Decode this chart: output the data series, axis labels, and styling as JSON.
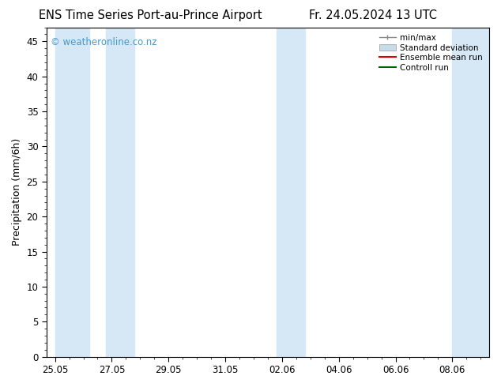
{
  "title_left": "ENS Time Series Port-au-Prince Airport",
  "title_right": "Fr. 24.05.2024 13 UTC",
  "ylabel": "Precipitation (mm/6h)",
  "watermark": "© weatheronline.co.nz",
  "ylim": [
    0,
    47
  ],
  "yticks": [
    0,
    5,
    10,
    15,
    20,
    25,
    30,
    35,
    40,
    45
  ],
  "xtick_labels": [
    "25.05",
    "27.05",
    "29.05",
    "31.05",
    "02.06",
    "04.06",
    "06.06",
    "08.06"
  ],
  "xtick_positions": [
    0,
    2,
    4,
    6,
    8,
    10,
    12,
    14
  ],
  "xlim": [
    -0.3,
    15.3
  ],
  "band_color": "#d6e8f5",
  "background_color": "#ffffff",
  "legend_entries": [
    "min/max",
    "Standard deviation",
    "Ensemble mean run",
    "Controll run"
  ],
  "title_fontsize": 10.5,
  "watermark_color": "#4499cc",
  "watermark_fontsize": 8.5,
  "axis_label_fontsize": 9,
  "tick_fontsize": 8.5,
  "bands": [
    [
      0.0,
      1.2
    ],
    [
      1.8,
      2.8
    ],
    [
      7.8,
      8.8
    ],
    [
      14.0,
      15.3
    ]
  ]
}
